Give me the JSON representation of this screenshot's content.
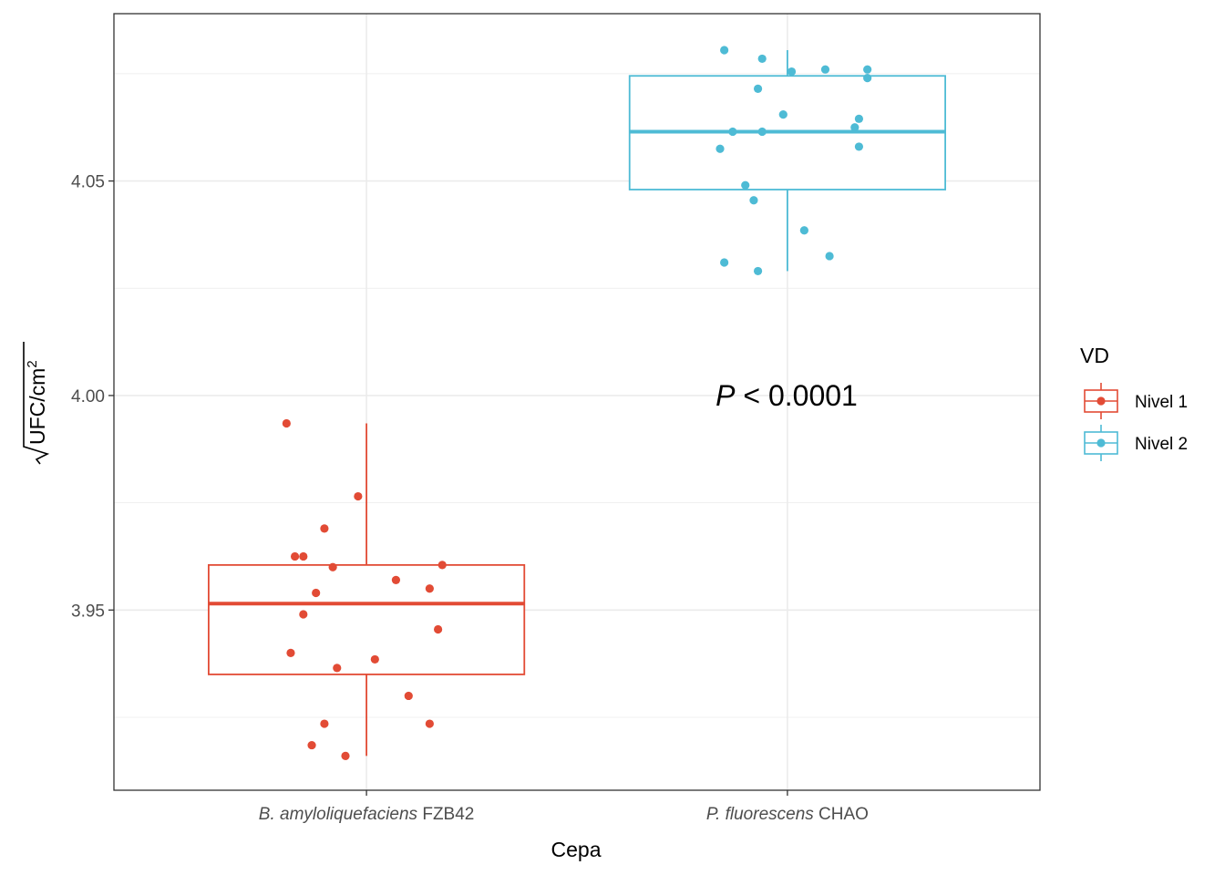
{
  "chart_data": {
    "type": "box",
    "xlabel": "Cepa",
    "ylabel": {
      "radicand": "UFC",
      "denominator": "cm",
      "superscript": "2"
    },
    "ylim": [
      3.908,
      4.089
    ],
    "yticks": [
      "3.95",
      "4.00",
      "4.05"
    ],
    "grid": true,
    "categories": [
      {
        "italic": "B. amyloliquefaciens",
        "plain": " FZB42"
      },
      {
        "italic": "P. fluorescens",
        "plain": " CHAO"
      }
    ],
    "legend": {
      "title": "VD",
      "position": "right",
      "items": [
        {
          "label": "Nivel 1",
          "color": "#e24b35"
        },
        {
          "label": "Nivel 2",
          "color": "#4ebbd5"
        }
      ]
    },
    "annotation": {
      "italic": "P",
      "text": " < 0.0001"
    },
    "series": [
      {
        "name": "Nivel 1",
        "color": "#e24b35",
        "box": {
          "min": 3.916,
          "q1": 3.935,
          "median": 3.9515,
          "q3": 3.9605,
          "max": 3.9935
        },
        "points": [
          [
            -0.19,
            3.9935
          ],
          [
            -0.02,
            3.9765
          ],
          [
            -0.1,
            3.969
          ],
          [
            -0.17,
            3.9625
          ],
          [
            -0.15,
            3.9625
          ],
          [
            0.18,
            3.9605
          ],
          [
            -0.08,
            3.96
          ],
          [
            0.07,
            3.957
          ],
          [
            0.15,
            3.955
          ],
          [
            -0.12,
            3.954
          ],
          [
            -0.15,
            3.949
          ],
          [
            0.17,
            3.9455
          ],
          [
            -0.18,
            3.94
          ],
          [
            0.02,
            3.9385
          ],
          [
            -0.07,
            3.9365
          ],
          [
            0.1,
            3.93
          ],
          [
            -0.1,
            3.9235
          ],
          [
            0.15,
            3.9235
          ],
          [
            -0.13,
            3.9185
          ],
          [
            -0.05,
            3.916
          ]
        ]
      },
      {
        "name": "Nivel 2",
        "color": "#4ebbd5",
        "box": {
          "min": 4.029,
          "q1": 4.048,
          "median": 4.0615,
          "q3": 4.0745,
          "max": 4.0805
        },
        "points": [
          [
            -0.15,
            4.0805
          ],
          [
            -0.06,
            4.0785
          ],
          [
            0.09,
            4.076
          ],
          [
            0.19,
            4.076
          ],
          [
            0.01,
            4.0755
          ],
          [
            0.19,
            4.074
          ],
          [
            -0.07,
            4.0715
          ],
          [
            -0.01,
            4.0655
          ],
          [
            0.17,
            4.0645
          ],
          [
            0.16,
            4.0625
          ],
          [
            -0.13,
            4.0615
          ],
          [
            -0.06,
            4.0615
          ],
          [
            -0.16,
            4.0575
          ],
          [
            0.17,
            4.058
          ],
          [
            -0.1,
            4.049
          ],
          [
            -0.08,
            4.0455
          ],
          [
            0.04,
            4.0385
          ],
          [
            0.1,
            4.0325
          ],
          [
            -0.15,
            4.031
          ],
          [
            -0.07,
            4.029
          ]
        ]
      }
    ]
  }
}
